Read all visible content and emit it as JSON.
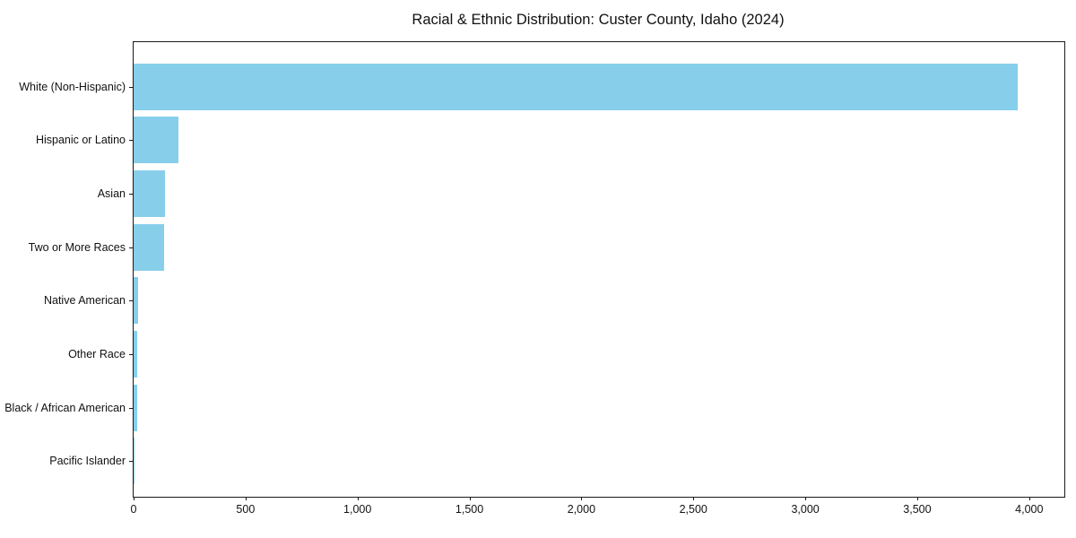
{
  "title": "Racial & Ethnic Distribution: Custer County, Idaho (2024)",
  "chart_data": {
    "type": "bar",
    "orientation": "horizontal",
    "title": "Racial & Ethnic Distribution: Custer County, Idaho (2024)",
    "xlabel": "",
    "ylabel": "",
    "categories": [
      "White (Non-Hispanic)",
      "Hispanic or Latino",
      "Asian",
      "Two or More Races",
      "Native American",
      "Other Race",
      "Black / African American",
      "Pacific Islander"
    ],
    "values": [
      3950,
      200,
      140,
      135,
      20,
      18,
      17,
      2
    ],
    "bar_color": "#87CEEB",
    "xlim": [
      0,
      4157
    ],
    "x_ticks": [
      0,
      500,
      1000,
      1500,
      2000,
      2500,
      3000,
      3500,
      4000
    ],
    "x_tick_labels": [
      "0",
      "500",
      "1,000",
      "1,500",
      "2,000",
      "2,500",
      "3,000",
      "3,500",
      "4,000"
    ],
    "grid": false,
    "legend": null
  }
}
